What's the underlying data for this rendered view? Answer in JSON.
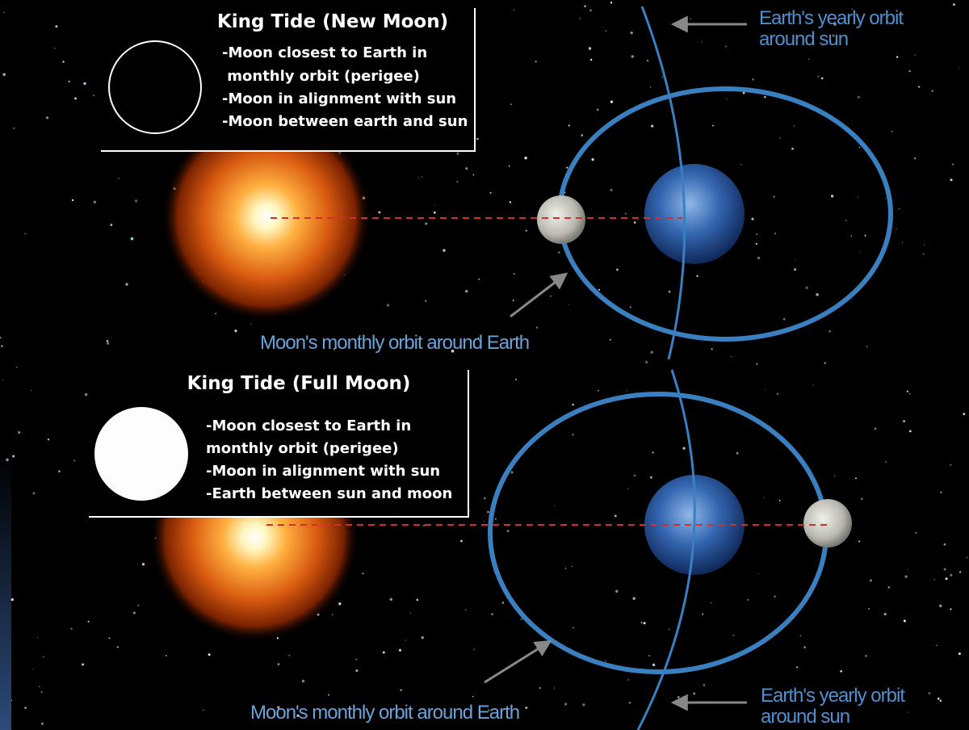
{
  "panels": [
    {
      "title": "King Tide (New Moon)",
      "lines": [
        "-Moon closest to Earth in",
        " monthly orbit (perigee)",
        "-Moon in alignment with sun",
        "-Moon between earth and sun"
      ],
      "earth_orbit_label": [
        "Earth's yearly orbit",
        "around sun"
      ],
      "moon_orbit_label": "Moon's monthly orbit around Earth"
    },
    {
      "title": "King Tide (Full Moon)",
      "lines": [
        "-Moon closest to Earth in",
        "monthly orbit (perigee)",
        "-Moon in alignment with sun",
        "-Earth between sun and moon"
      ],
      "earth_orbit_label": [
        "Earth's yearly orbit",
        "around sun"
      ],
      "moon_orbit_label": "Moon's monthly orbit around Earth"
    }
  ]
}
